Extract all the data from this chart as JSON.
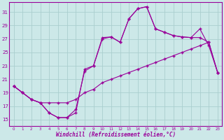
{
  "xlabel": "Windchill (Refroidissement éolien,°C)",
  "x": [
    0,
    1,
    2,
    3,
    4,
    5,
    6,
    7,
    8,
    9,
    10,
    11,
    12,
    13,
    14,
    15,
    16,
    17,
    18,
    19,
    20,
    21,
    22,
    23
  ],
  "line1": [
    20.0,
    19.0,
    18.0,
    17.5,
    17.5,
    17.5,
    17.5,
    18.0,
    19.0,
    19.5,
    20.5,
    21.0,
    21.5,
    22.0,
    22.5,
    23.0,
    23.5,
    24.0,
    24.5,
    25.0,
    25.5,
    26.0,
    26.5,
    22.0
  ],
  "line2": [
    20.0,
    19.0,
    18.0,
    17.5,
    16.0,
    15.3,
    15.3,
    16.0,
    22.5,
    23.0,
    27.2,
    27.3,
    26.5,
    30.0,
    31.5,
    31.8,
    28.5,
    28.0,
    27.5,
    27.3,
    27.2,
    28.5,
    26.0,
    22.0
  ],
  "line3": [
    20.0,
    19.0,
    18.0,
    17.5,
    16.0,
    15.3,
    15.3,
    16.5,
    22.2,
    23.0,
    27.0,
    27.3,
    26.5,
    30.0,
    31.5,
    31.8,
    28.5,
    28.0,
    27.5,
    27.3,
    27.2,
    27.2,
    26.5,
    22.0
  ],
  "line_color": "#990099",
  "bg_color": "#cce8e8",
  "grid_color": "#aacece",
  "ylim": [
    14.0,
    32.5
  ],
  "yticks": [
    15,
    17,
    19,
    21,
    23,
    25,
    27,
    29,
    31
  ],
  "xlim": [
    -0.5,
    23.5
  ],
  "xticks": [
    0,
    1,
    2,
    3,
    4,
    5,
    6,
    7,
    8,
    9,
    10,
    11,
    12,
    13,
    14,
    15,
    16,
    17,
    18,
    19,
    20,
    21,
    22,
    23
  ]
}
